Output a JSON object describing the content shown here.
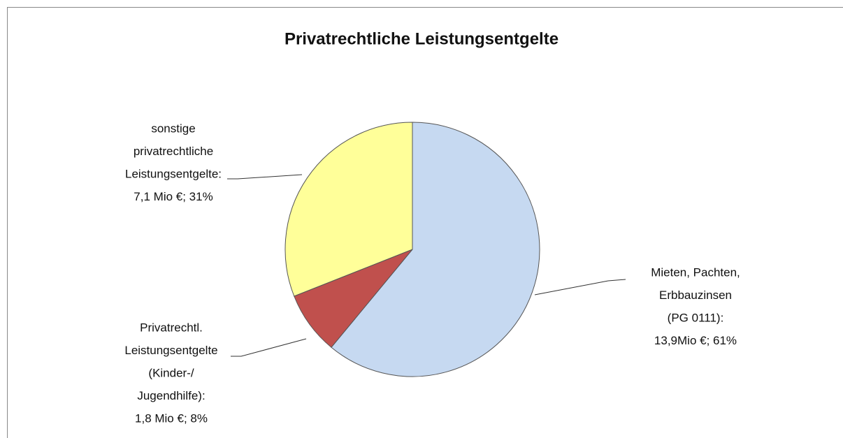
{
  "chart_data": {
    "type": "pie",
    "title": "Privatrechtliche Leistungsentgelte",
    "categories": [
      [
        "Mieten, Pachten,",
        "Erbbauzinsen",
        "(PG 0111):"
      ],
      [
        "Privatrechtl.",
        "Leistungsentgelte",
        "(Kinder-/",
        "Jugendhilfe):"
      ],
      [
        "sonstige",
        "privatrechtliche",
        "Leistungsentgelte:"
      ]
    ],
    "values": [
      61,
      8,
      31
    ],
    "value_labels": [
      "13,9Mio €; 61%",
      "1,8 Mio €; 8%",
      "7,1 Mio €; 31%"
    ],
    "colors": [
      "#c6d9f1",
      "#c0504d",
      "#ffff99"
    ]
  }
}
